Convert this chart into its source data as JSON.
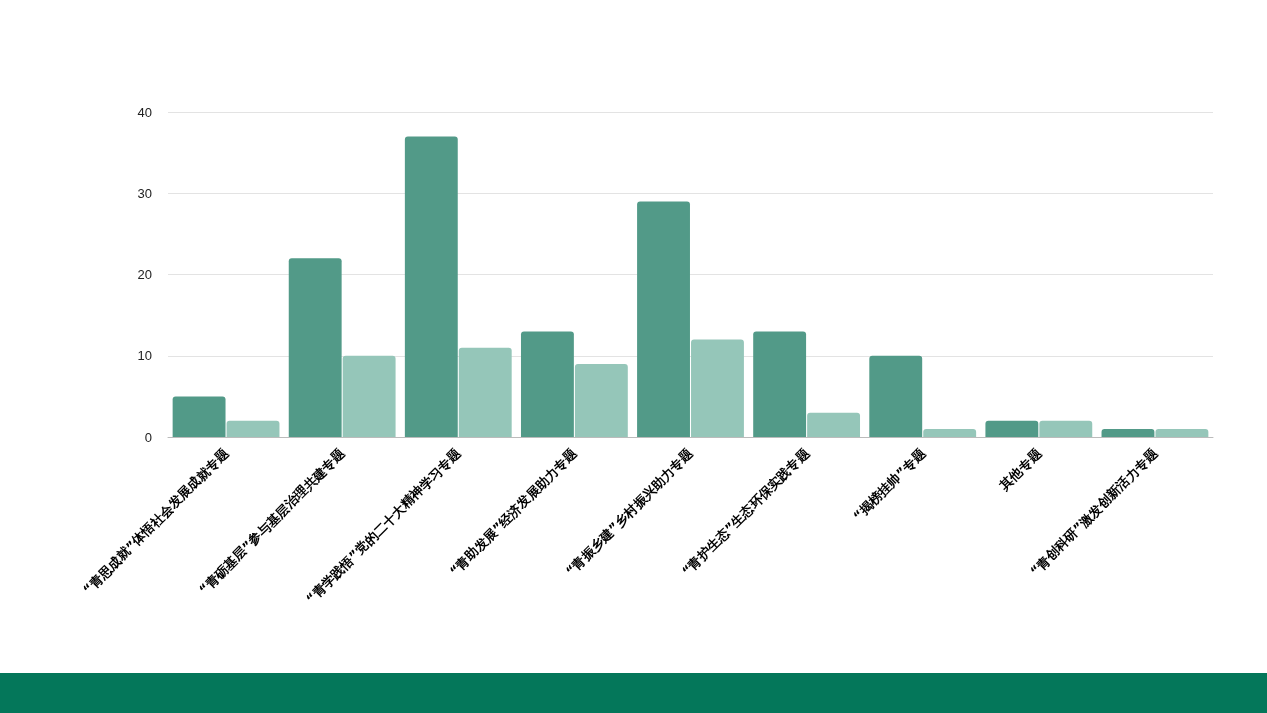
{
  "chart_data": {
    "type": "bar",
    "categories": [
      "“青思成就”体悟社会发展成就专题",
      "“青砺基层”参与基层治理共建专题",
      "“青学践悟”党的二十大精神学习专题",
      "“青助发展”经济发展助力专题",
      "“青振乡建”乡村振兴助力专题",
      "“青护生态”生态环保实践专题",
      "“揭榜挂帅”专题",
      "其他专题",
      "“青创科研”激发创新活力专题"
    ],
    "series": [
      {
        "color": "#529a88",
        "values": [
          5,
          22,
          37,
          13,
          29,
          13,
          10,
          2,
          1
        ]
      },
      {
        "color": "#95c6b9",
        "values": [
          2,
          10,
          11,
          9,
          12,
          3,
          1,
          2,
          1
        ]
      }
    ],
    "ylim": [
      0,
      40
    ],
    "yticks": [
      0,
      10,
      20,
      30,
      40
    ],
    "grid": "y"
  }
}
